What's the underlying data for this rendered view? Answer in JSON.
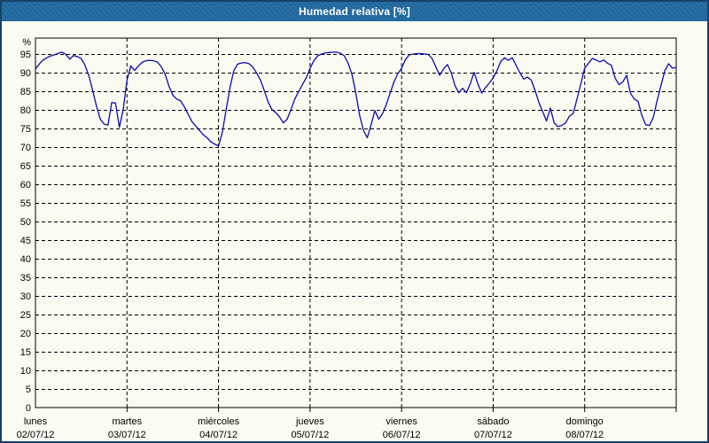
{
  "window": {
    "title": "Humedad relativa [%]"
  },
  "colors": {
    "titlebar_bg": "#2069a0",
    "page_border": "#17406a",
    "content_bg": "#fbfbf2",
    "line": "#0b0bb0",
    "grid": "#000000",
    "text": "#000000"
  },
  "chart_data": {
    "type": "line",
    "title": "Humedad relativa [%]",
    "y_unit_label": "%",
    "ylabel": "Humedad relativa",
    "xlabel": "",
    "ylim": [
      0,
      99.3
    ],
    "y_ticks": [
      0,
      5,
      10,
      15,
      20,
      25,
      30,
      35,
      40,
      45,
      50,
      55,
      60,
      65,
      70,
      75,
      80,
      85,
      90,
      95
    ],
    "grid": "dashed horizontal lines every 5 %, dashed vertical line at each day boundary",
    "legend_position": "none",
    "x_axis": {
      "days": [
        {
          "name": "lunes",
          "date": "02/07/12"
        },
        {
          "name": "martes",
          "date": "03/07/12"
        },
        {
          "name": "miércoles",
          "date": "04/07/12"
        },
        {
          "name": "jueves",
          "date": "05/07/12"
        },
        {
          "name": "viernes",
          "date": "06/07/12"
        },
        {
          "name": "sábado",
          "date": "07/07/12"
        },
        {
          "name": "domingo",
          "date": "08/07/12"
        }
      ],
      "points_per_day": 24,
      "sampling": "hourly"
    },
    "series": [
      {
        "name": "Humedad relativa [%]",
        "unit": "%",
        "values": [
          91,
          92.3,
          93.4,
          94,
          94.5,
          94.8,
          95.2,
          95.5,
          94.9,
          93.6,
          94.6,
          94.3,
          93.8,
          92,
          89.2,
          85.2,
          81,
          77.5,
          76.2,
          75.9,
          82,
          81.8,
          75.3,
          80,
          88,
          91.8,
          90.6,
          91.8,
          92.8,
          93.2,
          93.3,
          93.2,
          92.8,
          91.6,
          89.6,
          86.4,
          84,
          82.9,
          82.5,
          80.9,
          78.9,
          76.9,
          75.7,
          74.5,
          73.3,
          72.5,
          71.4,
          70.8,
          70.3,
          74,
          80,
          86,
          90.5,
          92.3,
          92.6,
          92.7,
          92.4,
          91.5,
          89.9,
          88,
          85.2,
          82.1,
          80.1,
          79.3,
          78.1,
          76.5,
          77.5,
          80.1,
          82.9,
          84.9,
          86.8,
          88.6,
          91.2,
          93.2,
          94.5,
          95,
          95.3,
          95.4,
          95.5,
          95.5,
          95.2,
          94.5,
          92.5,
          89.5,
          84.5,
          78.5,
          74.5,
          72.5,
          76,
          79.8,
          77.5,
          79,
          81.5,
          84.5,
          87.5,
          89.7,
          91.2,
          93.5,
          94.8,
          95,
          95.1,
          95.1,
          95,
          94.9,
          93.8,
          91.5,
          89.3,
          91,
          92.2,
          90,
          86.5,
          84.6,
          85.8,
          84.6,
          87,
          90.1,
          87,
          84.5,
          86,
          87.2,
          88.6,
          90.5,
          93,
          94,
          93.3,
          94,
          92,
          90,
          88.3,
          88.8,
          88,
          85.2,
          82,
          79.5,
          77,
          80.5,
          76.5,
          75.5,
          75.8,
          76.5,
          78.3,
          79,
          83,
          87,
          91.2,
          92.5,
          93.8,
          93.4,
          92.9,
          93.4,
          92.5,
          92,
          88.5,
          86.8,
          87.5,
          89.3,
          84.5,
          82.9,
          82.3,
          78.5,
          76,
          75.8,
          78,
          82.5,
          86.5,
          90.5,
          92.4,
          91.2,
          91.4
        ]
      }
    ]
  }
}
